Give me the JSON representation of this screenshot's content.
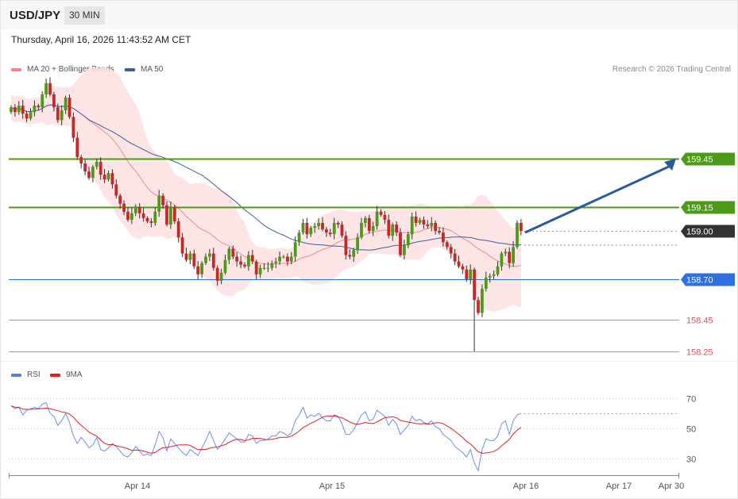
{
  "header": {
    "symbol": "USD/JPY",
    "timeframe": "30 MIN",
    "datetime": "Thursday, April 16, 2026 11:43:52 AM CET"
  },
  "legend_main": [
    {
      "label": "MA 20 + Bollinger Bands",
      "color": "#f08a8a"
    },
    {
      "label": "MA 50",
      "color": "#3a5f9a"
    }
  ],
  "copyright": "Research © 2026 Trading Central",
  "legend_rsi": [
    {
      "label": "RSI",
      "color": "#5b7fd4"
    },
    {
      "label": "9MA",
      "color": "#e02020"
    }
  ],
  "colors": {
    "bull": "#4c9a18",
    "bear": "#c62828",
    "resistance": "#4c9a18",
    "pivot": "#2f6fe0",
    "support": "#e05050",
    "current": "#333333",
    "arrow": "#2a5aa0"
  },
  "chart_data": {
    "type": "candlestick",
    "ylim": [
      158.2,
      159.65
    ],
    "levels": [
      {
        "label": "159.45",
        "value": 159.45,
        "kind": "resistance"
      },
      {
        "label": "159.15",
        "value": 159.15,
        "kind": "resistance"
      },
      {
        "label": "159.00",
        "value": 159.0,
        "kind": "current"
      },
      {
        "label": "158.70",
        "value": 158.7,
        "kind": "pivot"
      },
      {
        "label": "158.45",
        "value": 158.45,
        "kind": "support"
      },
      {
        "label": "158.25",
        "value": 158.25,
        "kind": "support"
      }
    ],
    "x_ticks": [
      "Apr 14",
      "Apr 15",
      "Apr 16",
      "Apr 17",
      "Apr 30"
    ],
    "rsi_ticks": [
      70,
      50,
      30
    ],
    "projection": {
      "from": 158.99,
      "to": 159.45
    },
    "close": [
      159.77,
      159.74,
      159.78,
      159.73,
      159.7,
      159.74,
      159.78,
      159.77,
      159.85,
      159.92,
      159.85,
      159.77,
      159.69,
      159.75,
      159.83,
      159.71,
      159.58,
      159.46,
      159.42,
      159.37,
      159.33,
      159.4,
      159.43,
      159.35,
      159.32,
      159.36,
      159.29,
      159.22,
      159.17,
      159.12,
      159.07,
      159.11,
      159.15,
      159.11,
      159.08,
      159.06,
      159.05,
      159.12,
      159.22,
      159.16,
      159.04,
      159.15,
      159.06,
      158.96,
      158.86,
      158.82,
      158.86,
      158.78,
      158.73,
      158.8,
      158.84,
      158.86,
      158.77,
      158.69,
      158.74,
      158.82,
      158.89,
      158.84,
      158.81,
      158.79,
      158.78,
      158.85,
      158.81,
      158.73,
      158.77,
      158.77,
      158.77,
      158.8,
      158.81,
      158.84,
      158.84,
      158.81,
      158.84,
      158.93,
      158.99,
      159.05,
      158.98,
      159.02,
      159.03,
      159.05,
      159.01,
      158.99,
      158.98,
      159.05,
      159.04,
      158.97,
      158.85,
      158.84,
      158.88,
      158.96,
      159.05,
      159.08,
      159.0,
      159.03,
      159.12,
      159.1,
      159.07,
      158.97,
      159.04,
      158.99,
      158.85,
      158.91,
      158.98,
      159.09,
      159.05,
      159.07,
      159.04,
      159.03,
      159.05,
      159.0,
      158.99,
      158.93,
      158.9,
      158.86,
      158.81,
      158.78,
      158.76,
      158.7,
      158.76,
      158.57,
      158.49,
      158.64,
      158.71,
      158.72,
      158.73,
      158.78,
      158.86,
      158.87,
      158.8,
      158.9,
      159.05,
      159.0
    ],
    "rsi": [
      65,
      63,
      64,
      59,
      62,
      63,
      64,
      63,
      66,
      67,
      60,
      58,
      52,
      55,
      60,
      54,
      45,
      40,
      44,
      41,
      37,
      39,
      44,
      36,
      35,
      37,
      40,
      38,
      35,
      32,
      31,
      34,
      38,
      35,
      32,
      33,
      32,
      39,
      48,
      44,
      35,
      43,
      40,
      37,
      34,
      32,
      36,
      34,
      32,
      37,
      42,
      48,
      42,
      36,
      39,
      43,
      47,
      45,
      43,
      41,
      41,
      46,
      45,
      40,
      42,
      42,
      43,
      45,
      45,
      48,
      47,
      45,
      47,
      55,
      59,
      64,
      57,
      59,
      58,
      60,
      57,
      55,
      55,
      59,
      58,
      53,
      46,
      46,
      49,
      54,
      59,
      61,
      55,
      56,
      62,
      60,
      58,
      52,
      56,
      53,
      46,
      49,
      52,
      58,
      55,
      56,
      54,
      53,
      55,
      51,
      50,
      46,
      44,
      42,
      38,
      36,
      34,
      31,
      36,
      27,
      22,
      36,
      43,
      42,
      42,
      45,
      53,
      55,
      46,
      55,
      59,
      60
    ]
  }
}
